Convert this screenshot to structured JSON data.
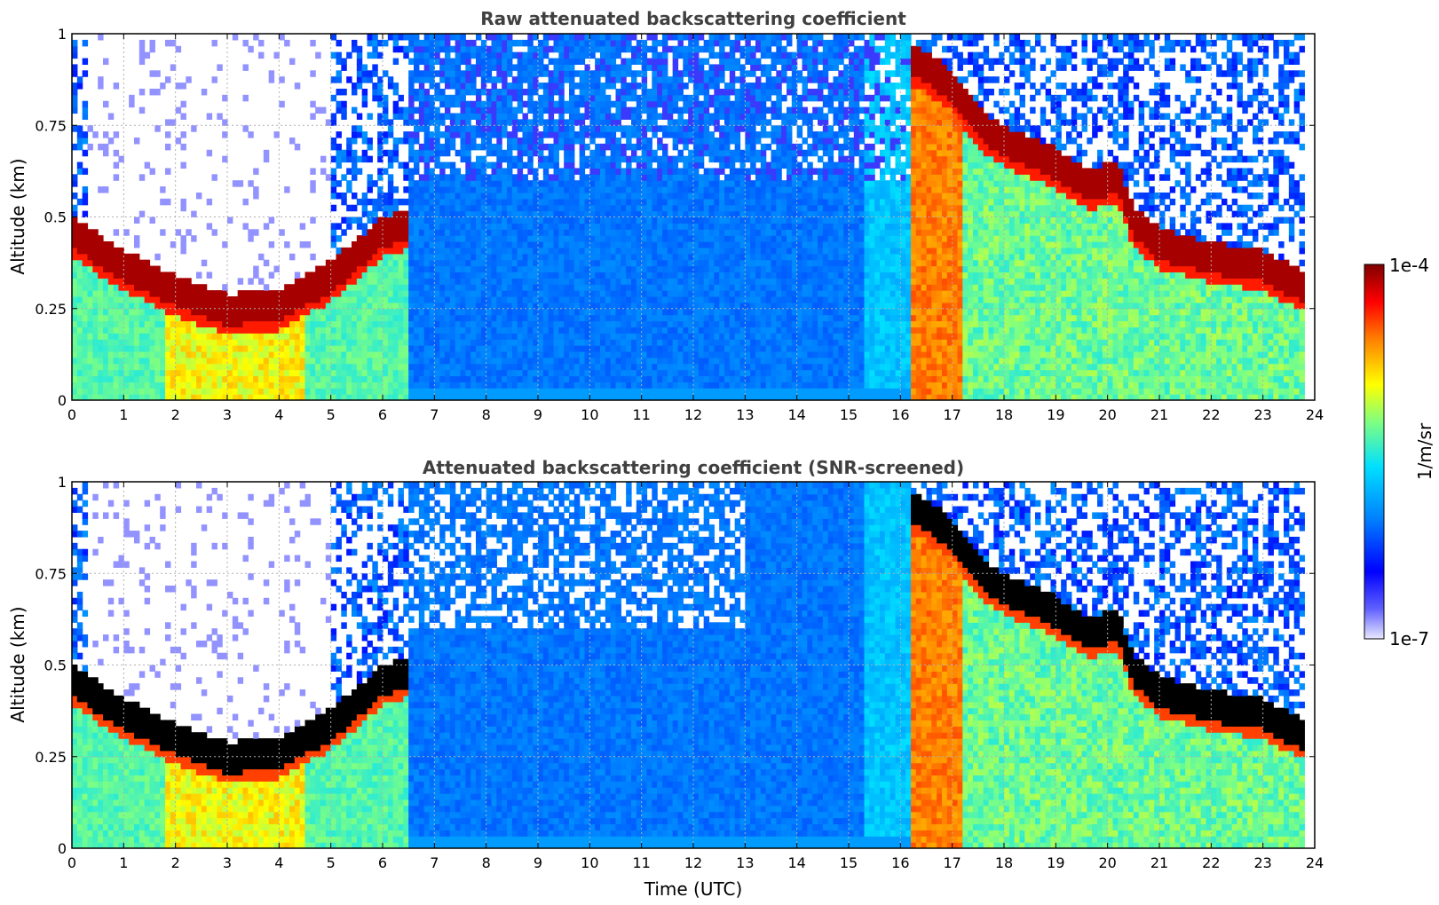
{
  "chart_data": [
    {
      "type": "heatmap",
      "title": "Raw attenuated backscattering coefficient",
      "xlabel": "",
      "ylabel": "Altitude (km)",
      "xlim": [
        0,
        24
      ],
      "ylim": [
        0,
        1
      ],
      "xticks": [
        "0",
        "1",
        "2",
        "3",
        "4",
        "5",
        "6",
        "7",
        "8",
        "9",
        "10",
        "11",
        "12",
        "13",
        "14",
        "15",
        "16",
        "17",
        "18",
        "19",
        "20",
        "21",
        "22",
        "23",
        "24"
      ],
      "yticks": [
        "0",
        "0.25",
        "0.5",
        "0.75",
        "1"
      ],
      "grid": true,
      "color_scale": "log",
      "screened": false,
      "cloud_base_km": [
        {
          "t": 0,
          "z": 0.45
        },
        {
          "t": 1,
          "z": 0.36
        },
        {
          "t": 2,
          "z": 0.29
        },
        {
          "t": 3,
          "z": 0.24
        },
        {
          "t": 4,
          "z": 0.25
        },
        {
          "t": 5,
          "z": 0.33
        },
        {
          "t": 6,
          "z": 0.45
        },
        {
          "t": 16.3,
          "z": 0.92
        },
        {
          "t": 17,
          "z": 0.85
        },
        {
          "t": 17.5,
          "z": 0.75
        },
        {
          "t": 18,
          "z": 0.7
        },
        {
          "t": 19,
          "z": 0.64
        },
        {
          "t": 19.6,
          "z": 0.58
        },
        {
          "t": 20.2,
          "z": 0.6
        },
        {
          "t": 20.5,
          "z": 0.48
        },
        {
          "t": 21,
          "z": 0.42
        },
        {
          "t": 22,
          "z": 0.38
        },
        {
          "t": 23,
          "z": 0.36
        },
        {
          "t": 23.8,
          "z": 0.3
        }
      ]
    },
    {
      "type": "heatmap",
      "title": "Attenuated backscattering coefficient (SNR-screened)",
      "xlabel": "Time (UTC)",
      "ylabel": "Altitude (km)",
      "xlim": [
        0,
        24
      ],
      "ylim": [
        0,
        1
      ],
      "xticks": [
        "0",
        "1",
        "2",
        "3",
        "4",
        "5",
        "6",
        "7",
        "8",
        "9",
        "10",
        "11",
        "12",
        "13",
        "14",
        "15",
        "16",
        "17",
        "18",
        "19",
        "20",
        "21",
        "22",
        "23",
        "24"
      ],
      "yticks": [
        "0",
        "0.25",
        "0.5",
        "0.75",
        "1"
      ],
      "grid": true,
      "color_scale": "log",
      "screened": true,
      "cloud_base_km": [
        {
          "t": 0,
          "z": 0.45
        },
        {
          "t": 1,
          "z": 0.36
        },
        {
          "t": 2,
          "z": 0.29
        },
        {
          "t": 3,
          "z": 0.24
        },
        {
          "t": 4,
          "z": 0.25
        },
        {
          "t": 5,
          "z": 0.33
        },
        {
          "t": 6,
          "z": 0.45
        },
        {
          "t": 16.3,
          "z": 0.92
        },
        {
          "t": 17,
          "z": 0.85
        },
        {
          "t": 17.5,
          "z": 0.75
        },
        {
          "t": 18,
          "z": 0.7
        },
        {
          "t": 19,
          "z": 0.64
        },
        {
          "t": 19.6,
          "z": 0.58
        },
        {
          "t": 20.2,
          "z": 0.6
        },
        {
          "t": 20.5,
          "z": 0.48
        },
        {
          "t": 21,
          "z": 0.42
        },
        {
          "t": 22,
          "z": 0.38
        },
        {
          "t": 23,
          "z": 0.36
        },
        {
          "t": 23.8,
          "z": 0.3
        }
      ]
    }
  ],
  "colorbar": {
    "label": "1/m/sr",
    "max_label": "1e-4",
    "min_label": "1e-7",
    "colors": [
      "#e8e8ff",
      "#0000ff",
      "#0080ff",
      "#00e0ff",
      "#80ff80",
      "#ffff00",
      "#ff8000",
      "#ff0000",
      "#800000"
    ]
  }
}
